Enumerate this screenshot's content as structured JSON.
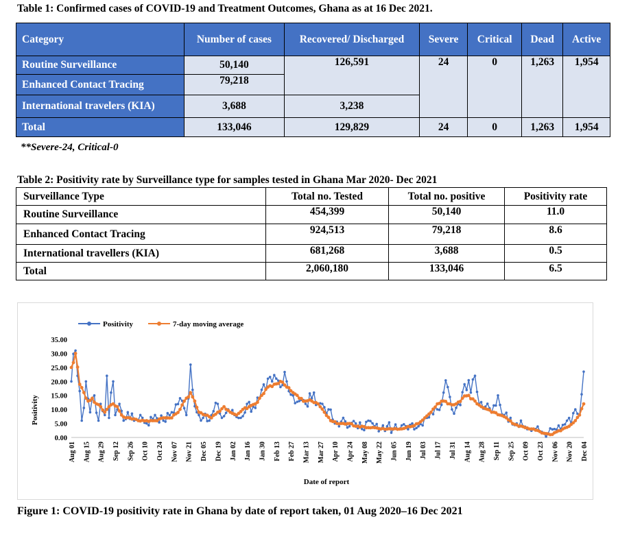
{
  "table1": {
    "caption": "Table 1: Confirmed cases of COVID-19 and Treatment Outcomes, Ghana as at 16 Dec 2021.",
    "headers": [
      "Category",
      "Number of cases",
      "Recovered/ Discharged",
      "Severe",
      "Critical",
      "Dead",
      "Active"
    ],
    "rows": [
      {
        "category": "Routine Surveillance",
        "cases": "50,140",
        "recovered": "126,591",
        "severe": "24",
        "critical": "0",
        "dead": "1,263",
        "active": "1,954"
      },
      {
        "category": "Enhanced Contact Tracing",
        "cases": "79,218"
      },
      {
        "category": "International travelers (KIA)",
        "cases": "3,688",
        "recovered": "3,238"
      },
      {
        "category": "Total",
        "cases": "133,046",
        "recovered": "129,829",
        "severe": "24",
        "critical": "0",
        "dead": "1,263",
        "active": "1,954"
      }
    ],
    "note": "**Severe-24, Critical-0"
  },
  "table2": {
    "caption": "Table 2: Positivity rate by Surveillance type for samples tested in Ghana Mar 2020- Dec 2021",
    "headers": [
      "Surveillance Type",
      "Total no. Tested",
      "Total no. positive",
      "Positivity rate"
    ],
    "rows": [
      {
        "type": "Routine Surveillance",
        "tested": "454,399",
        "positive": "50,140",
        "rate": "11.0"
      },
      {
        "type": "Enhanced Contact Tracing",
        "tested": "924,513",
        "positive": "79,218",
        "rate": "8.6"
      },
      {
        "type": "International travellers (KIA)",
        "tested": "681,268",
        "positive": "3,688",
        "rate": "0.5"
      },
      {
        "type": "Total",
        "tested": "2,060,180",
        "positive": "133,046",
        "rate": "6.5"
      }
    ]
  },
  "figure": {
    "caption": "Figure 1: COVID-19 positivity rate in Ghana by date of report taken, 01 Aug 2020–16 Dec 2021"
  },
  "chart_data": {
    "type": "line",
    "xlabel": "Date of report",
    "ylabel": "Positivity",
    "ylim": [
      0,
      35
    ],
    "yticks": [
      "0.00",
      "5.00",
      "10.00",
      "15.00",
      "20.00",
      "25.00",
      "30.00",
      "35.00"
    ],
    "legend": "top-left",
    "grid": false,
    "colors": {
      "positivity": "#4472C4",
      "moving_average": "#ED7D31"
    },
    "x_tick_labels": [
      "Aug 01",
      "Aug 15",
      "Aug 29",
      "Sep 12",
      "Sep 26",
      "Oct 10",
      "Oct 24",
      "Nov 07",
      "Nov 21",
      "Dec 05",
      "Dec 19",
      "Jan 02",
      "Jan 16",
      "Jan 30",
      "Feb 13",
      "Feb 27",
      "Mar 13",
      "Mar 27",
      "Apr 10",
      "Apr 24",
      "May 08",
      "May 22",
      "Jun 05",
      "Jun 19",
      "Jul 03",
      "Jul 17",
      "Jul 31",
      "Aug 14",
      "Aug 28",
      "Sep 11",
      "Sep 25",
      "Oct 09",
      "Oct 23",
      "Nov 06",
      "Nov 20",
      "Dec 04"
    ],
    "series": [
      {
        "name": "Positivity",
        "keypoints": [
          [
            0,
            20
          ],
          [
            2,
            31
          ],
          [
            3,
            22
          ],
          [
            5,
            6
          ],
          [
            7,
            20
          ],
          [
            9,
            9
          ],
          [
            11,
            15
          ],
          [
            13,
            6
          ],
          [
            14,
            12
          ],
          [
            16,
            8
          ],
          [
            17,
            22
          ],
          [
            18,
            7
          ],
          [
            19,
            16
          ],
          [
            20,
            20
          ],
          [
            21,
            8
          ],
          [
            23,
            12
          ],
          [
            25,
            6
          ],
          [
            27,
            9
          ],
          [
            30,
            6
          ],
          [
            33,
            8
          ],
          [
            36,
            5
          ],
          [
            40,
            8
          ],
          [
            44,
            6
          ],
          [
            48,
            9
          ],
          [
            52,
            14
          ],
          [
            55,
            8
          ],
          [
            57,
            26
          ],
          [
            58,
            17
          ],
          [
            60,
            9
          ],
          [
            63,
            7
          ],
          [
            66,
            6
          ],
          [
            70,
            12
          ],
          [
            72,
            7
          ],
          [
            75,
            10
          ],
          [
            78,
            8
          ],
          [
            81,
            7
          ],
          [
            84,
            12
          ],
          [
            87,
            11
          ],
          [
            90,
            14
          ],
          [
            93,
            17
          ],
          [
            96,
            20
          ],
          [
            98,
            21
          ],
          [
            100,
            18
          ],
          [
            103,
            20
          ],
          [
            106,
            15
          ],
          [
            109,
            13
          ],
          [
            112,
            12
          ],
          [
            115,
            14
          ],
          [
            118,
            12
          ],
          [
            120,
            12
          ],
          [
            123,
            10
          ],
          [
            126,
            5
          ],
          [
            128,
            4
          ],
          [
            130,
            7
          ],
          [
            133,
            4
          ],
          [
            136,
            5
          ],
          [
            139,
            3
          ],
          [
            142,
            6
          ],
          [
            145,
            4
          ],
          [
            148,
            3
          ],
          [
            151,
            4
          ],
          [
            154,
            3
          ],
          [
            157,
            3
          ],
          [
            160,
            4
          ],
          [
            163,
            5
          ],
          [
            166,
            4
          ],
          [
            169,
            7
          ],
          [
            172,
            9
          ],
          [
            175,
            10
          ],
          [
            178,
            16
          ],
          [
            180,
            18
          ],
          [
            182,
            10
          ],
          [
            185,
            12
          ],
          [
            188,
            19
          ],
          [
            191,
            16
          ],
          [
            193,
            22
          ],
          [
            195,
            12
          ],
          [
            198,
            11
          ],
          [
            201,
            9
          ],
          [
            204,
            15
          ],
          [
            207,
            8
          ],
          [
            210,
            7
          ],
          [
            213,
            5
          ],
          [
            216,
            4
          ],
          [
            219,
            3
          ],
          [
            222,
            3
          ],
          [
            225,
            2
          ],
          [
            228,
            1.5
          ],
          [
            231,
            3
          ],
          [
            234,
            3
          ],
          [
            237,
            6
          ],
          [
            239,
            5
          ],
          [
            241,
            10
          ],
          [
            243,
            8
          ],
          [
            245,
            23.5
          ]
        ]
      },
      {
        "name": "7-day moving average",
        "keypoints": [
          [
            0,
            25
          ],
          [
            2,
            30
          ],
          [
            4,
            19
          ],
          [
            6,
            16
          ],
          [
            8,
            13
          ],
          [
            10,
            14
          ],
          [
            12,
            12
          ],
          [
            14,
            11
          ],
          [
            16,
            9
          ],
          [
            18,
            11
          ],
          [
            20,
            12
          ],
          [
            22,
            11
          ],
          [
            24,
            8
          ],
          [
            26,
            7
          ],
          [
            28,
            7
          ],
          [
            32,
            6
          ],
          [
            36,
            6
          ],
          [
            40,
            6
          ],
          [
            44,
            7
          ],
          [
            48,
            7
          ],
          [
            52,
            10
          ],
          [
            55,
            14
          ],
          [
            57,
            16
          ],
          [
            59,
            13
          ],
          [
            61,
            9
          ],
          [
            64,
            8
          ],
          [
            67,
            7
          ],
          [
            70,
            9
          ],
          [
            73,
            11
          ],
          [
            76,
            9
          ],
          [
            79,
            8
          ],
          [
            82,
            10
          ],
          [
            85,
            11
          ],
          [
            88,
            12
          ],
          [
            91,
            15
          ],
          [
            94,
            18
          ],
          [
            97,
            19
          ],
          [
            100,
            20
          ],
          [
            103,
            18
          ],
          [
            106,
            16
          ],
          [
            109,
            14
          ],
          [
            112,
            13
          ],
          [
            115,
            13
          ],
          [
            118,
            12
          ],
          [
            121,
            9
          ],
          [
            124,
            6
          ],
          [
            127,
            5
          ],
          [
            130,
            5
          ],
          [
            133,
            5
          ],
          [
            136,
            4
          ],
          [
            139,
            4
          ],
          [
            142,
            3.5
          ],
          [
            145,
            3.5
          ],
          [
            148,
            3
          ],
          [
            151,
            3
          ],
          [
            154,
            3
          ],
          [
            157,
            3
          ],
          [
            160,
            3.5
          ],
          [
            163,
            4
          ],
          [
            166,
            5
          ],
          [
            169,
            7
          ],
          [
            172,
            9
          ],
          [
            175,
            12
          ],
          [
            178,
            13
          ],
          [
            181,
            12
          ],
          [
            184,
            12
          ],
          [
            187,
            14
          ],
          [
            190,
            15
          ],
          [
            193,
            13
          ],
          [
            196,
            11
          ],
          [
            199,
            10
          ],
          [
            202,
            9
          ],
          [
            205,
            8
          ],
          [
            208,
            7
          ],
          [
            211,
            5
          ],
          [
            214,
            4
          ],
          [
            217,
            3.5
          ],
          [
            220,
            3
          ],
          [
            223,
            2.5
          ],
          [
            226,
            1.5
          ],
          [
            229,
            1
          ],
          [
            232,
            2
          ],
          [
            235,
            3
          ],
          [
            238,
            4
          ],
          [
            241,
            6
          ],
          [
            243,
            8
          ],
          [
            245,
            12
          ]
        ]
      }
    ]
  }
}
